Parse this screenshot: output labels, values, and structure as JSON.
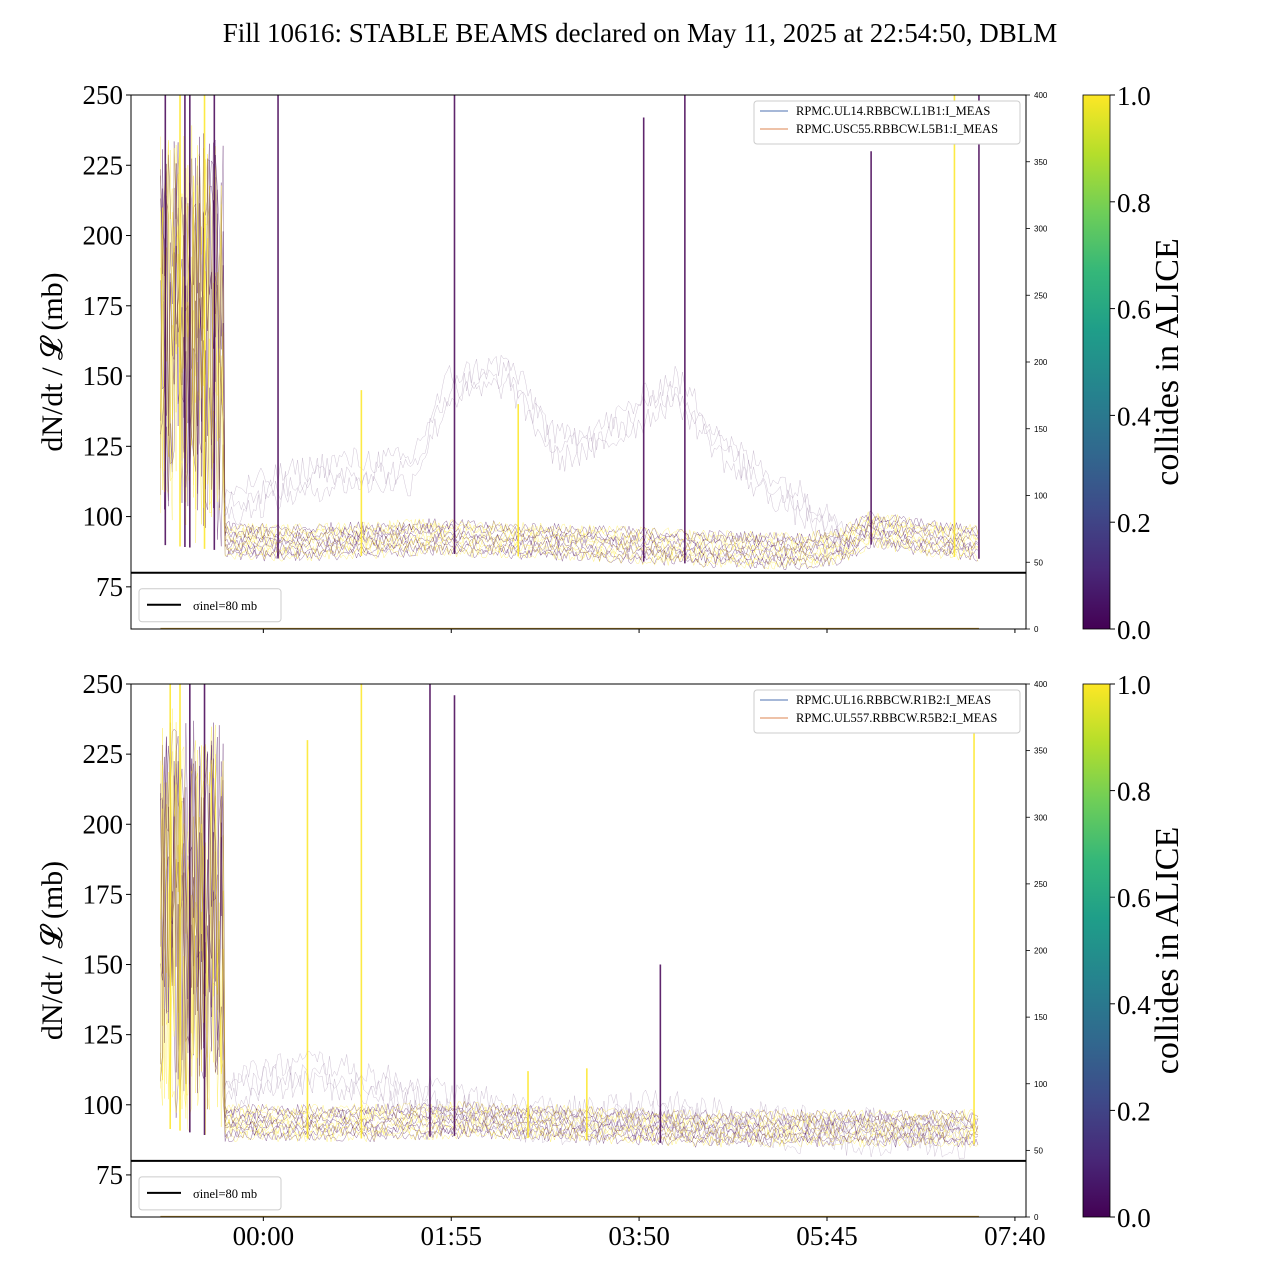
{
  "title": "Fill 10616: STABLE BEAMS declared on May 11, 2025 at 22:54:50, DBLM",
  "chart_data": [
    {
      "type": "line",
      "panel": "top",
      "ylabel": "dN/dt / 𝓛 (mb)",
      "ylim": [
        60,
        250
      ],
      "yticks": [
        75,
        100,
        125,
        150,
        175,
        200,
        225,
        250
      ],
      "y2lim": [
        0,
        400
      ],
      "y2ticks": [
        0,
        50,
        100,
        150,
        200,
        250,
        300,
        350,
        400
      ],
      "xlim": [
        -1.35,
        7.78
      ],
      "xticks": [
        {
          "label": "00:00",
          "x": 0
        },
        {
          "label": "01:55",
          "x": 1.917
        },
        {
          "label": "03:50",
          "x": 3.833
        },
        {
          "label": "05:45",
          "x": 5.75
        },
        {
          "label": "07:40",
          "x": 7.667
        }
      ],
      "show_xticklabels": false,
      "reference_line": {
        "y": 80,
        "label": "σinel=80 mb"
      },
      "legend": [
        "RPMC.UL14.RBBCW.L1B1:I_MEAS",
        "RPMC.USC55.RBBCW.L5B1:I_MEAS"
      ],
      "legend_colors": [
        "#4c72b0",
        "#dd8452"
      ],
      "colorbar": {
        "label": "collides in ALICE",
        "ticks": [
          "0.0",
          "0.2",
          "0.4",
          "0.6",
          "0.8",
          "1.0"
        ]
      },
      "series_colors": [
        "#440154",
        "#fde725"
      ],
      "baseline": [
        {
          "x": -1.05,
          "y": 90
        },
        {
          "x": -0.45,
          "y": 88
        },
        {
          "x": -0.4,
          "y": 86
        },
        {
          "x": 0.2,
          "y": 85
        },
        {
          "x": 1.0,
          "y": 86
        },
        {
          "x": 1.7,
          "y": 87
        },
        {
          "x": 2.5,
          "y": 86
        },
        {
          "x": 3.2,
          "y": 85
        },
        {
          "x": 3.9,
          "y": 84
        },
        {
          "x": 4.5,
          "y": 83
        },
        {
          "x": 5.5,
          "y": 82
        },
        {
          "x": 5.9,
          "y": 84
        },
        {
          "x": 6.2,
          "y": 90
        },
        {
          "x": 6.9,
          "y": 86
        },
        {
          "x": 7.3,
          "y": 85
        }
      ],
      "halo": [
        {
          "x": -0.4,
          "y": 108
        },
        {
          "x": 0.2,
          "y": 115
        },
        {
          "x": 0.8,
          "y": 120
        },
        {
          "x": 1.5,
          "y": 120
        },
        {
          "x": 1.9,
          "y": 150
        },
        {
          "x": 2.5,
          "y": 155
        },
        {
          "x": 3.0,
          "y": 128
        },
        {
          "x": 3.5,
          "y": 133
        },
        {
          "x": 4.2,
          "y": 150
        },
        {
          "x": 4.8,
          "y": 124
        },
        {
          "x": 5.5,
          "y": 108
        },
        {
          "x": 5.95,
          "y": 98
        }
      ],
      "spikes": [
        {
          "x": -1.0,
          "y": 250,
          "c": "#440154"
        },
        {
          "x": -0.85,
          "y": 250,
          "c": "#fde725"
        },
        {
          "x": -0.8,
          "y": 250,
          "c": "#440154"
        },
        {
          "x": -0.75,
          "y": 250,
          "c": "#440154"
        },
        {
          "x": -0.6,
          "y": 250,
          "c": "#fde725"
        },
        {
          "x": -0.5,
          "y": 250,
          "c": "#440154"
        },
        {
          "x": 0.15,
          "y": 250,
          "c": "#440154"
        },
        {
          "x": 1.0,
          "y": 145,
          "c": "#fde725"
        },
        {
          "x": 1.95,
          "y": 250,
          "c": "#440154"
        },
        {
          "x": 2.6,
          "y": 140,
          "c": "#fde725"
        },
        {
          "x": 3.88,
          "y": 242,
          "c": "#440154"
        },
        {
          "x": 4.3,
          "y": 250,
          "c": "#440154"
        },
        {
          "x": 6.2,
          "y": 230,
          "c": "#440154"
        },
        {
          "x": 7.05,
          "y": 250,
          "c": "#fde725"
        },
        {
          "x": 7.3,
          "y": 250,
          "c": "#440154"
        }
      ]
    },
    {
      "type": "line",
      "panel": "bottom",
      "ylabel": "dN/dt / 𝓛 (mb)",
      "ylim": [
        60,
        250
      ],
      "yticks": [
        75,
        100,
        125,
        150,
        175,
        200,
        225,
        250
      ],
      "y2lim": [
        0,
        400
      ],
      "y2ticks": [
        0,
        50,
        100,
        150,
        200,
        250,
        300,
        350,
        400
      ],
      "xlim": [
        -1.35,
        7.78
      ],
      "xticks": [
        {
          "label": "00:00",
          "x": 0
        },
        {
          "label": "01:55",
          "x": 1.917
        },
        {
          "label": "03:50",
          "x": 3.833
        },
        {
          "label": "05:45",
          "x": 5.75
        },
        {
          "label": "07:40",
          "x": 7.667
        }
      ],
      "show_xticklabels": true,
      "reference_line": {
        "y": 80,
        "label": "σinel=80 mb"
      },
      "legend": [
        "RPMC.UL16.RBBCW.R1B2:I_MEAS",
        "RPMC.UL557.RBBCW.R5B2:I_MEAS"
      ],
      "legend_colors": [
        "#4c72b0",
        "#dd8452"
      ],
      "colorbar": {
        "label": "collides in ALICE",
        "ticks": [
          "0.0",
          "0.2",
          "0.4",
          "0.6",
          "0.8",
          "1.0"
        ]
      },
      "series_colors": [
        "#440154",
        "#fde725"
      ],
      "baseline": [
        {
          "x": -1.05,
          "y": 92
        },
        {
          "x": -0.4,
          "y": 88
        },
        {
          "x": 0.4,
          "y": 88
        },
        {
          "x": 1.2,
          "y": 88
        },
        {
          "x": 2.0,
          "y": 89
        },
        {
          "x": 2.8,
          "y": 88
        },
        {
          "x": 3.6,
          "y": 87
        },
        {
          "x": 4.4,
          "y": 86
        },
        {
          "x": 5.2,
          "y": 86
        },
        {
          "x": 6.0,
          "y": 86
        },
        {
          "x": 6.6,
          "y": 86
        },
        {
          "x": 7.3,
          "y": 86
        }
      ],
      "halo": [
        {
          "x": -0.4,
          "y": 110
        },
        {
          "x": 0.5,
          "y": 116
        },
        {
          "x": 1.2,
          "y": 110
        },
        {
          "x": 1.8,
          "y": 105
        },
        {
          "x": 2.5,
          "y": 100
        },
        {
          "x": 3.3,
          "y": 98
        },
        {
          "x": 4.0,
          "y": 101
        },
        {
          "x": 4.8,
          "y": 97
        },
        {
          "x": 5.6,
          "y": 95
        },
        {
          "x": 6.4,
          "y": 94
        },
        {
          "x": 7.2,
          "y": 93
        }
      ],
      "spikes": [
        {
          "x": -0.95,
          "y": 250,
          "c": "#fde725"
        },
        {
          "x": -0.85,
          "y": 250,
          "c": "#fde725"
        },
        {
          "x": -0.75,
          "y": 250,
          "c": "#440154"
        },
        {
          "x": -0.6,
          "y": 250,
          "c": "#440154"
        },
        {
          "x": 0.45,
          "y": 230,
          "c": "#fde725"
        },
        {
          "x": 1.0,
          "y": 250,
          "c": "#fde725"
        },
        {
          "x": 1.7,
          "y": 250,
          "c": "#440154"
        },
        {
          "x": 1.95,
          "y": 246,
          "c": "#440154"
        },
        {
          "x": 2.7,
          "y": 112,
          "c": "#fde725"
        },
        {
          "x": 3.3,
          "y": 113,
          "c": "#fde725"
        },
        {
          "x": 4.05,
          "y": 150,
          "c": "#440154"
        },
        {
          "x": 7.25,
          "y": 240,
          "c": "#fde725"
        }
      ]
    }
  ]
}
